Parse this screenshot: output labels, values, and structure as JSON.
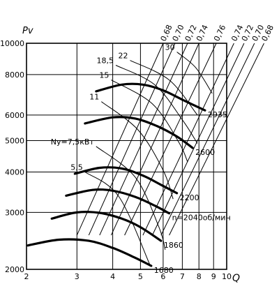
{
  "chart_data": {
    "type": "line",
    "title": "",
    "xlabel": "Q",
    "ylabel": "Pv",
    "x_scale": "log",
    "y_scale": "log",
    "xlim": [
      2,
      10
    ],
    "ylim": [
      2000,
      10000
    ],
    "x_ticks": [
      2,
      3,
      4,
      5,
      6,
      7,
      8,
      9,
      10
    ],
    "y_ticks": [
      2000,
      3000,
      4000,
      5000,
      6000,
      8000,
      10000
    ],
    "grid": true,
    "speed_unit": "об/мин",
    "speed_prefix": "n=",
    "speed_curves": [
      {
        "rpm": "1680",
        "points": [
          [
            2.02,
            2370
          ],
          [
            2.6,
            2470
          ],
          [
            3.3,
            2450
          ],
          [
            4.0,
            2330
          ],
          [
            4.8,
            2170
          ],
          [
            5.45,
            2050
          ]
        ]
      },
      {
        "rpm": "1860",
        "points": [
          [
            2.45,
            2870
          ],
          [
            3.0,
            3000
          ],
          [
            3.6,
            2990
          ],
          [
            4.3,
            2870
          ],
          [
            5.0,
            2700
          ],
          [
            5.9,
            2450
          ]
        ]
      },
      {
        "rpm": "2040",
        "points": [
          [
            2.75,
            3380
          ],
          [
            3.4,
            3520
          ],
          [
            4.0,
            3500
          ],
          [
            4.8,
            3350
          ],
          [
            5.6,
            3150
          ],
          [
            6.3,
            2980
          ]
        ]
      },
      {
        "rpm": "2200",
        "points": [
          [
            2.95,
            3950
          ],
          [
            3.6,
            4120
          ],
          [
            4.3,
            4100
          ],
          [
            5.1,
            3900
          ],
          [
            5.9,
            3650
          ],
          [
            6.7,
            3440
          ]
        ]
      },
      {
        "rpm": "2600",
        "points": [
          [
            3.2,
            5650
          ],
          [
            4.0,
            5900
          ],
          [
            4.8,
            5850
          ],
          [
            5.7,
            5550
          ],
          [
            6.7,
            5150
          ],
          [
            7.6,
            4750
          ]
        ]
      },
      {
        "rpm": "2935",
        "points": [
          [
            3.5,
            7100
          ],
          [
            4.3,
            7450
          ],
          [
            5.1,
            7450
          ],
          [
            6.0,
            7150
          ],
          [
            7.1,
            6650
          ],
          [
            8.4,
            6200
          ]
        ]
      }
    ],
    "efficiency_lines": [
      {
        "label": "0,68",
        "points": [
          [
            3.0,
            2550
          ],
          [
            6.0,
            10000
          ]
        ]
      },
      {
        "label": "0,70",
        "points": [
          [
            3.3,
            2550
          ],
          [
            6.6,
            10000
          ]
        ]
      },
      {
        "label": "0,72",
        "points": [
          [
            3.6,
            2550
          ],
          [
            7.3,
            10000
          ]
        ]
      },
      {
        "label": "0,74",
        "points": [
          [
            3.95,
            2550
          ],
          [
            8.0,
            10000
          ]
        ]
      },
      {
        "label": "0,76",
        "points": [
          [
            4.4,
            2550
          ],
          [
            9.2,
            10000
          ]
        ]
      },
      {
        "label": "0,74",
        "points": [
          [
            5.1,
            2550
          ],
          [
            10.6,
            10000
          ]
        ]
      },
      {
        "label": "0,72",
        "points": [
          [
            5.5,
            2550
          ],
          [
            11.5,
            10000
          ]
        ]
      },
      {
        "label": "0,70",
        "points": [
          [
            5.9,
            2550
          ],
          [
            12.5,
            10000
          ]
        ]
      },
      {
        "label": "0,68",
        "points": [
          [
            6.3,
            2550
          ],
          [
            13.5,
            10000
          ]
        ]
      }
    ],
    "power_lines": [
      {
        "label": "5,5",
        "points": [
          [
            3.2,
            4000
          ],
          [
            4.2,
            3360
          ],
          [
            5.4,
            2060
          ]
        ]
      },
      {
        "label": "Ny=7,5кВт",
        "points": [
          [
            3.5,
            4800
          ],
          [
            4.8,
            3850
          ],
          [
            5.8,
            2700
          ],
          [
            6.1,
            2300
          ]
        ]
      },
      {
        "label": "11",
        "points": [
          [
            3.65,
            6600
          ],
          [
            4.9,
            5400
          ],
          [
            6.0,
            4050
          ],
          [
            6.5,
            3300
          ]
        ]
      },
      {
        "label": "15",
        "points": [
          [
            3.95,
            7700
          ],
          [
            5.5,
            6500
          ],
          [
            6.8,
            4950
          ],
          [
            7.3,
            4300
          ]
        ]
      },
      {
        "label": "18,5",
        "points": [
          [
            4.1,
            8550
          ],
          [
            5.6,
            7450
          ],
          [
            7.0,
            5800
          ],
          [
            7.9,
            4900
          ]
        ]
      },
      {
        "label": "22",
        "points": [
          [
            4.6,
            8850
          ],
          [
            6.3,
            7700
          ],
          [
            7.9,
            6000
          ]
        ]
      },
      {
        "label": "30",
        "points": [
          [
            6.7,
            9400
          ],
          [
            7.8,
            8400
          ],
          [
            8.9,
            7000
          ]
        ]
      }
    ]
  }
}
